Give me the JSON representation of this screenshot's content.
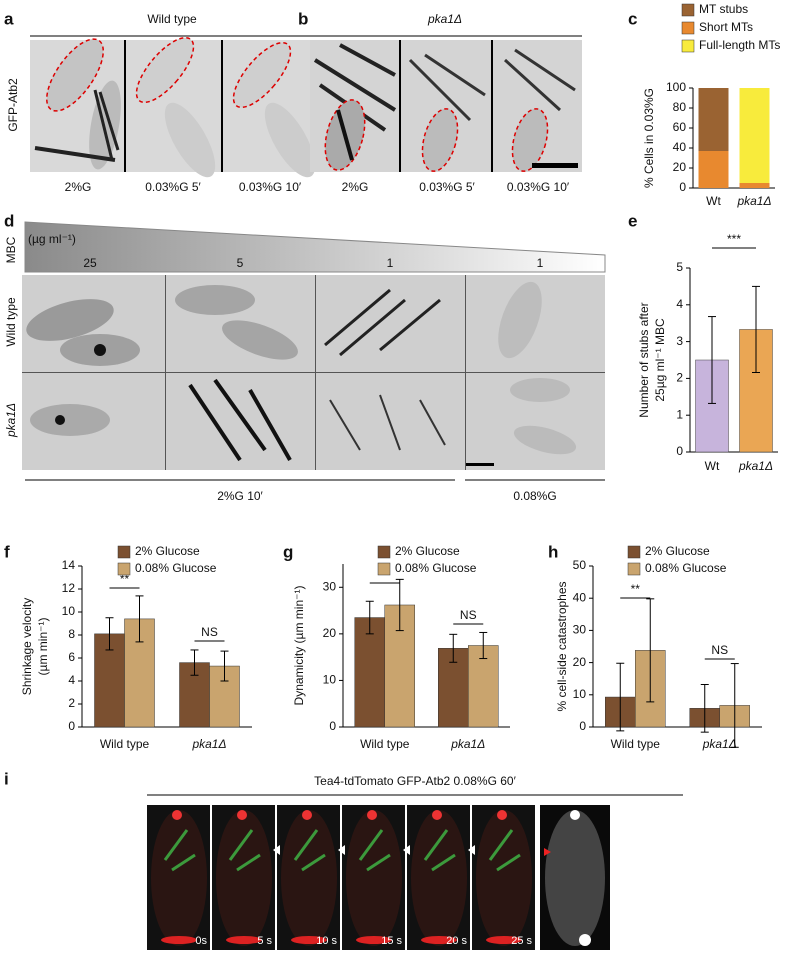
{
  "figure": {
    "panel_labels": [
      "a",
      "b",
      "c",
      "d",
      "e",
      "f",
      "g",
      "h",
      "i"
    ],
    "a": {
      "title": "Wild type",
      "ylabel": "GFP-Atb2",
      "captions": [
        "2%G",
        "0.03%G 5′",
        "0.03%G 10′"
      ]
    },
    "b": {
      "title": "pka1Δ",
      "captions": [
        "2%G",
        "0.03%G 5′",
        "0.03%G 10′"
      ]
    },
    "d": {
      "drug": "MBC",
      "unit": "(µg ml⁻¹)",
      "concentrations": [
        "25",
        "5",
        "1",
        "1"
      ],
      "rows": [
        "Wild type",
        "pka1Δ"
      ],
      "conditions": [
        "2%G 10′",
        "0.08%G"
      ]
    },
    "i": {
      "title": "Tea4-tdTomato GFP-Atb2 0.08%G 60′",
      "times": [
        "0s",
        "5 s",
        "10 s",
        "15 s",
        "20 s",
        "25 s"
      ]
    }
  },
  "chart_data": [
    {
      "type": "bar",
      "stacked": true,
      "ylabel": [
        "% Cells in 0.03%G"
      ],
      "categories": [
        "Wt",
        "pka1Δ"
      ],
      "series": [
        {
          "name": "Short MTs",
          "color": "#e8892f",
          "values": [
            37,
            5
          ]
        },
        {
          "name": "MT stubs",
          "color": "#9a6332",
          "values": [
            63,
            0
          ]
        },
        {
          "name": "Full-length MTs",
          "color": "#f8eb3c",
          "values": [
            0,
            95
          ]
        }
      ],
      "legend_order": [
        1,
        0,
        2
      ],
      "legend": "top-right",
      "ylim": [
        0,
        100
      ],
      "yticks": [
        0,
        20,
        40,
        60,
        80,
        100
      ]
    },
    {
      "type": "bar",
      "ylabel": [
        "Number of stubs after",
        "25µg ml⁻¹ MBC"
      ],
      "categories": [
        "Wt",
        "pka1Δ"
      ],
      "values": [
        2.5,
        3.33
      ],
      "errors": [
        1.18,
        1.17
      ],
      "colors": [
        "#c7b4dc",
        "#eaa654"
      ],
      "annotations": [
        "***"
      ],
      "ylim": [
        0,
        5
      ],
      "yticks": [
        0,
        1,
        2,
        3,
        4,
        5
      ]
    },
    {
      "type": "bar",
      "ylabel": [
        "Shrinkage velocity",
        "(µm min⁻¹)"
      ],
      "categories": [
        "Wild type",
        "pka1Δ"
      ],
      "series": [
        {
          "name": "2% Glucose",
          "color": "#7b5030",
          "values": [
            8.1,
            5.6
          ],
          "errors": [
            1.4,
            1.1
          ]
        },
        {
          "name": "0.08% Glucose",
          "color": "#c9a46e",
          "values": [
            9.4,
            5.3
          ],
          "errors": [
            2.0,
            1.3
          ]
        }
      ],
      "annotations": [
        "**",
        "NS"
      ],
      "ylim": [
        0,
        14
      ],
      "yticks": [
        0,
        2,
        4,
        6,
        8,
        10,
        12,
        14
      ]
    },
    {
      "type": "bar",
      "ylabel": [
        "Dynamicity (µm min⁻¹)"
      ],
      "categories": [
        "Wild type",
        "pka1Δ"
      ],
      "series": [
        {
          "name": "2% Glucose",
          "color": "#7b5030",
          "values": [
            23.5,
            16.9
          ],
          "errors": [
            3.5,
            3.0
          ]
        },
        {
          "name": "0.08% Glucose",
          "color": "#c9a46e",
          "values": [
            26.2,
            17.5
          ],
          "errors": [
            5.5,
            2.8
          ]
        }
      ],
      "annotations": [
        "*",
        "NS"
      ],
      "ylim": [
        0,
        35
      ],
      "yticks": [
        0,
        10,
        20,
        30
      ]
    },
    {
      "type": "bar",
      "ylabel": [
        "% cell-side catastrophes"
      ],
      "categories": [
        "Wild type",
        "pka1Δ"
      ],
      "series": [
        {
          "name": "2% Glucose",
          "color": "#7b5030",
          "values": [
            9.3,
            5.8
          ],
          "errors": [
            10.5,
            7.4
          ]
        },
        {
          "name": "0.08% Glucose",
          "color": "#c9a46e",
          "values": [
            23.8,
            6.7
          ],
          "errors": [
            16,
            13
          ]
        }
      ],
      "annotations": [
        "**",
        "NS"
      ],
      "ylim": [
        0,
        50
      ],
      "yticks": [
        0,
        10,
        20,
        30,
        40,
        50
      ]
    }
  ]
}
